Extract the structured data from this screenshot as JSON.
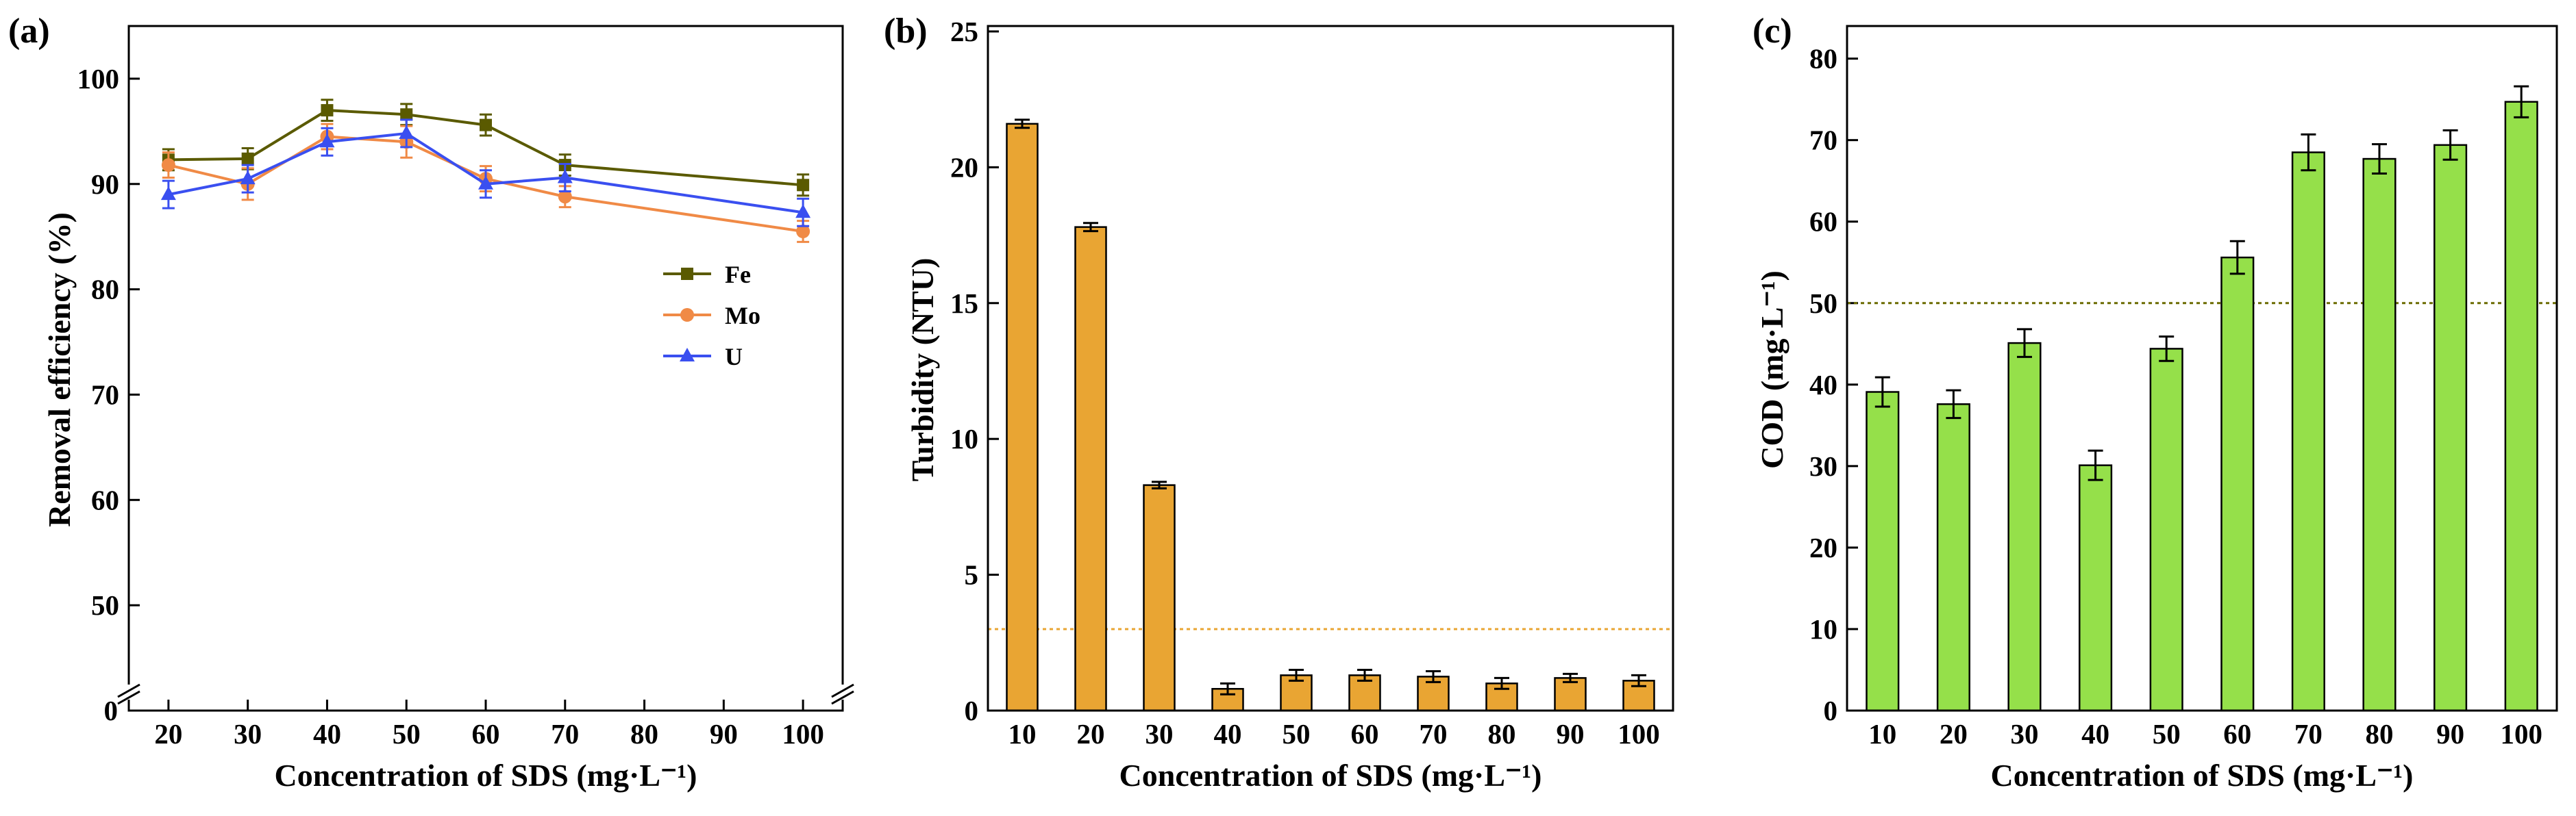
{
  "chart_data": [
    {
      "panel_label": "(a)",
      "type": "line",
      "xlabel": "Concentration of SDS (mg·L⁻¹)",
      "ylabel": "Removal efficiency (%)",
      "x": [
        20,
        30,
        40,
        50,
        60,
        70,
        100
      ],
      "x_ticks": [
        "20",
        "30",
        "40",
        "50",
        "60",
        "70",
        "80",
        "90",
        "100"
      ],
      "xlim": [
        15,
        105
      ],
      "ylim": [
        40,
        105
      ],
      "y_ticks": [
        "50",
        "60",
        "70",
        "80",
        "90",
        "100"
      ],
      "y_break_label": "0",
      "axis_break": true,
      "legend_position": "right-middle",
      "series": [
        {
          "name": "Fe",
          "color": "#5a5a00",
          "marker": "square",
          "values": [
            92.3,
            92.4,
            97.0,
            96.6,
            95.6,
            91.8,
            89.9
          ],
          "errors": [
            1.0,
            1.0,
            1.0,
            1.0,
            1.0,
            1.0,
            1.0
          ]
        },
        {
          "name": "Mo",
          "color": "#f08a46",
          "marker": "circle",
          "values": [
            91.8,
            90.0,
            94.5,
            94.0,
            90.5,
            88.8,
            85.5
          ],
          "errors": [
            1.2,
            1.5,
            1.2,
            1.5,
            1.2,
            1.0,
            1.0
          ]
        },
        {
          "name": "U",
          "color": "#3a4ff0",
          "marker": "triangle",
          "values": [
            89.0,
            90.5,
            94.0,
            94.8,
            90.0,
            90.6,
            87.3
          ],
          "errors": [
            1.3,
            1.3,
            1.3,
            1.3,
            1.3,
            1.3,
            1.3
          ]
        }
      ]
    },
    {
      "panel_label": "(b)",
      "type": "bar",
      "xlabel": "Concentration of SDS (mg·L⁻¹)",
      "ylabel": "Turbidity (NTU)",
      "categories": [
        "10",
        "20",
        "30",
        "40",
        "50",
        "60",
        "70",
        "80",
        "90",
        "100"
      ],
      "values": [
        21.6,
        17.8,
        8.3,
        0.8,
        1.3,
        1.3,
        1.25,
        1.0,
        1.2,
        1.1
      ],
      "errors": [
        0.15,
        0.15,
        0.12,
        0.2,
        0.2,
        0.2,
        0.2,
        0.2,
        0.15,
        0.2
      ],
      "ylim": [
        0,
        25.2
      ],
      "y_ticks": [
        "0",
        "5",
        "10",
        "15",
        "20",
        "25"
      ],
      "reference_line": 3,
      "bar_color": "#e9a533",
      "reference_color": "#e9a533"
    },
    {
      "panel_label": "(c)",
      "type": "bar",
      "xlabel": "Concentration of SDS (mg·L⁻¹)",
      "ylabel": "COD (mg·L⁻¹)",
      "categories": [
        "10",
        "20",
        "30",
        "40",
        "50",
        "60",
        "70",
        "80",
        "90",
        "100"
      ],
      "values": [
        39.1,
        37.6,
        45.1,
        30.1,
        44.4,
        55.6,
        68.5,
        67.7,
        69.4,
        74.7
      ],
      "errors": [
        1.8,
        1.7,
        1.7,
        1.8,
        1.5,
        2.0,
        2.2,
        1.8,
        1.8,
        1.9
      ],
      "ylim": [
        0,
        84
      ],
      "y_ticks": [
        "0",
        "10",
        "20",
        "30",
        "40",
        "50",
        "60",
        "70",
        "80"
      ],
      "reference_line": 50,
      "bar_color": "#95e04a",
      "reference_color": "#6b6b00"
    }
  ]
}
